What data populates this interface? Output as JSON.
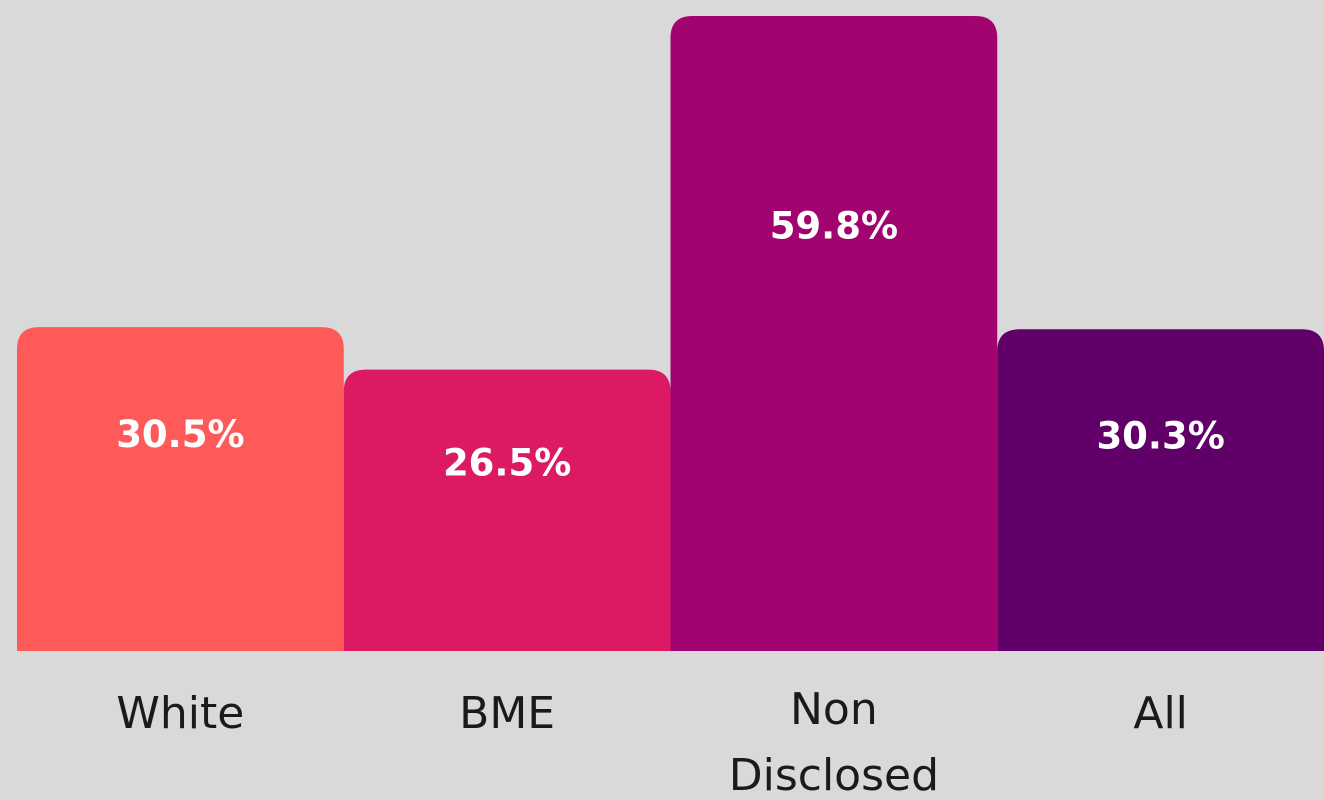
{
  "chart_data": {
    "type": "bar",
    "categories": [
      "White",
      "BME",
      "Non Disclosed",
      "All"
    ],
    "category_lines": [
      [
        "White"
      ],
      [
        "BME"
      ],
      [
        "Non",
        "Disclosed"
      ],
      [
        "All"
      ]
    ],
    "values": [
      30.5,
      26.5,
      59.8,
      30.3
    ],
    "value_labels": [
      "30.5%",
      "26.5%",
      "59.8%",
      "30.3%"
    ],
    "colors": [
      "#ff5a5a",
      "#dc1a63",
      "#a1046e",
      "#600068"
    ],
    "title": "",
    "xlabel": "",
    "ylabel": "",
    "unit": "%",
    "ylim": [
      0,
      60
    ],
    "grid": false,
    "legend": "none"
  }
}
